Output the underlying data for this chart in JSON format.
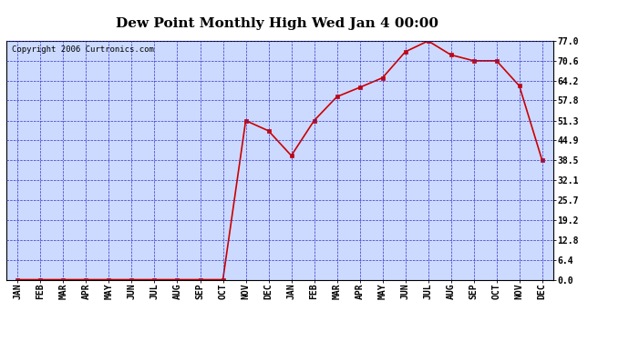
{
  "title": "Dew Point Monthly High Wed Jan 4 00:00",
  "copyright": "Copyright 2006 Curtronics.com",
  "x_labels": [
    "JAN",
    "FEB",
    "MAR",
    "APR",
    "MAY",
    "JUN",
    "JUL",
    "AUG",
    "SEP",
    "OCT",
    "NOV",
    "DEC",
    "JAN",
    "FEB",
    "MAR",
    "APR",
    "MAY",
    "JUN",
    "JUL",
    "AUG",
    "SEP",
    "OCT",
    "NOV",
    "DEC"
  ],
  "y_values": [
    0.0,
    0.0,
    0.0,
    0.0,
    0.0,
    0.0,
    0.0,
    0.0,
    0.0,
    0.0,
    51.3,
    48.0,
    40.0,
    51.3,
    59.0,
    62.0,
    65.1,
    73.5,
    77.0,
    72.5,
    70.6,
    70.6,
    62.5,
    38.5
  ],
  "y_ticks": [
    0.0,
    6.4,
    12.8,
    19.2,
    25.7,
    32.1,
    38.5,
    44.9,
    51.3,
    57.8,
    64.2,
    70.6,
    77.0
  ],
  "y_min": 0.0,
  "y_max": 77.0,
  "line_color": "#cc0000",
  "marker_color": "#cc0000",
  "bg_color": "#ccdaff",
  "grid_color": "#3333cc",
  "title_fontsize": 11,
  "axis_label_fontsize": 7,
  "copyright_fontsize": 6.5
}
